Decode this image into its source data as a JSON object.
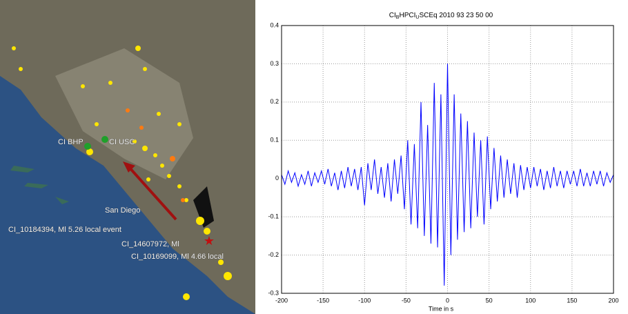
{
  "map": {
    "labels": [
      "CI BHP",
      "CI USC",
      "San Diego",
      "CI_10184394, Ml 5.26 local event",
      "CI_14607972, Ml",
      "CI_10169099, Ml 4.66 local"
    ]
  },
  "chart_data": {
    "type": "line",
    "title": [
      "CI",
      "B",
      "HPCI",
      "U",
      "SCEq 2010 93 23 50 00"
    ],
    "x_label": "Time in s",
    "xlim": [
      -200,
      200
    ],
    "ylim": [
      -0.3,
      0.4
    ],
    "xticks": [
      -200,
      -150,
      -100,
      -50,
      0,
      50,
      100,
      150,
      200
    ],
    "yticks": [
      -0.3,
      -0.2,
      -0.1,
      0,
      0.1,
      0.2,
      0.3,
      0.4
    ],
    "grid": true,
    "x": [
      -200,
      -196,
      -192,
      -188,
      -184,
      -180,
      -176,
      -172,
      -168,
      -164,
      -160,
      -156,
      -152,
      -148,
      -144,
      -140,
      -136,
      -132,
      -128,
      -124,
      -120,
      -116,
      -112,
      -108,
      -104,
      -100,
      -96,
      -92,
      -88,
      -84,
      -80,
      -76,
      -72,
      -68,
      -64,
      -60,
      -56,
      -52,
      -48,
      -44,
      -40,
      -36,
      -32,
      -28,
      -24,
      -20,
      -16,
      -12,
      -8,
      -4,
      0,
      4,
      8,
      12,
      16,
      20,
      24,
      28,
      32,
      36,
      40,
      44,
      48,
      52,
      56,
      60,
      64,
      68,
      72,
      76,
      80,
      84,
      88,
      92,
      96,
      100,
      104,
      108,
      112,
      116,
      120,
      124,
      128,
      132,
      136,
      140,
      144,
      148,
      152,
      156,
      160,
      164,
      168,
      172,
      176,
      180,
      184,
      188,
      192,
      196,
      200
    ],
    "series": [
      {
        "color": "#0000ff",
        "values": [
          0.01,
          -0.015,
          0.02,
          -0.01,
          0.015,
          -0.02,
          0.01,
          -0.015,
          0.02,
          -0.02,
          0.015,
          -0.01,
          0.02,
          -0.015,
          0.025,
          -0.02,
          0.015,
          -0.03,
          0.02,
          -0.025,
          0.03,
          -0.02,
          0.025,
          -0.03,
          0.03,
          -0.07,
          0.04,
          -0.03,
          0.05,
          -0.04,
          0.03,
          -0.05,
          0.04,
          -0.06,
          0.05,
          -0.04,
          0.06,
          -0.08,
          0.1,
          -0.12,
          0.09,
          -0.13,
          0.2,
          -0.15,
          0.14,
          -0.17,
          0.25,
          -0.18,
          0.22,
          -0.28,
          0.3,
          -0.2,
          0.22,
          -0.16,
          0.17,
          -0.14,
          0.15,
          -0.13,
          0.12,
          -0.1,
          0.1,
          -0.12,
          0.11,
          -0.08,
          0.08,
          -0.06,
          0.06,
          -0.05,
          0.05,
          -0.04,
          0.04,
          -0.05,
          0.035,
          -0.03,
          0.03,
          -0.025,
          0.03,
          -0.02,
          0.025,
          -0.03,
          0.02,
          -0.025,
          0.03,
          -0.02,
          0.02,
          -0.025,
          0.02,
          -0.015,
          0.02,
          -0.02,
          0.025,
          -0.02,
          0.015,
          -0.02,
          0.02,
          -0.015,
          0.02,
          -0.02,
          0.015,
          -0.01,
          0.01
        ]
      }
    ]
  }
}
